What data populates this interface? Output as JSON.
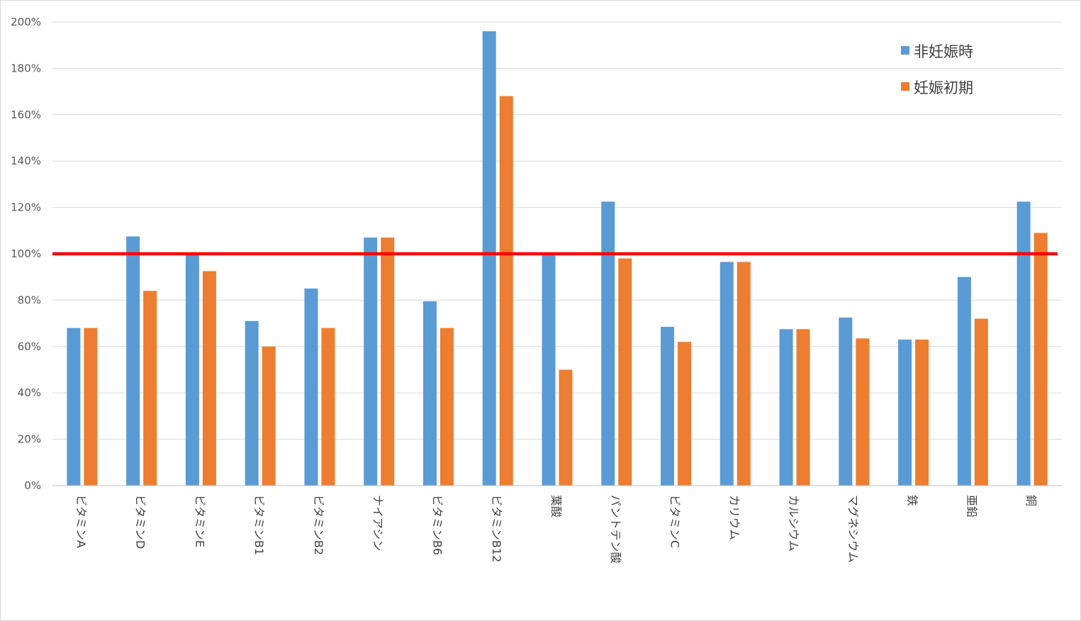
{
  "chart_data": {
    "type": "bar",
    "categories": [
      "ビタミンA",
      "ビタミンD",
      "ビタミンE",
      "ビタミンB1",
      "ビタミンB2",
      "ナイアシン",
      "ビタミンB6",
      "ビタミンB12",
      "葉酸",
      "パントテン酸",
      "ビタミンC",
      "カリウム",
      "カルシウム",
      "マグネシウム",
      "鉄",
      "亜鉛",
      "銅"
    ],
    "series": [
      {
        "name": "非妊娠時",
        "color": "#5b9bd5",
        "values": [
          68,
          107.5,
          100,
          71,
          85,
          107,
          79.5,
          196,
          100,
          122.5,
          68.5,
          96.5,
          67.5,
          72.5,
          63,
          90,
          122.5
        ]
      },
      {
        "name": "妊娠初期",
        "color": "#ed7d31",
        "values": [
          68,
          84,
          92.5,
          60,
          68,
          107,
          68,
          168,
          50,
          98,
          62,
          96.5,
          67.5,
          63.5,
          63,
          72,
          109
        ]
      }
    ],
    "ylim": [
      0,
      200
    ],
    "y_ticks": [
      "0%",
      "20%",
      "40%",
      "60%",
      "80%",
      "100%",
      "120%",
      "140%",
      "160%",
      "180%",
      "200%"
    ],
    "reference_line": {
      "value": 100,
      "color": "#ff0000"
    },
    "grid": true,
    "legend_position": "top-right",
    "title": "",
    "xlabel": "",
    "ylabel": ""
  }
}
